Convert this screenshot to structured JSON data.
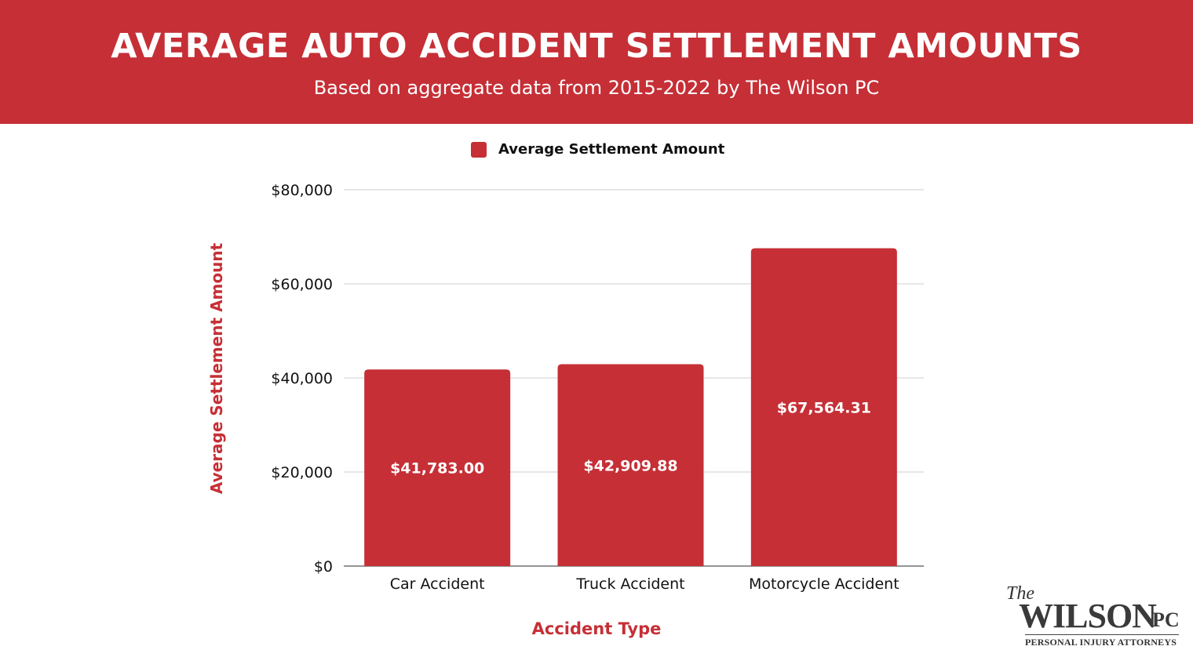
{
  "header": {
    "title": "AVERAGE AUTO ACCIDENT SETTLEMENT AMOUNTS",
    "subtitle": "Based on aggregate data from 2015-2022 by The Wilson PC"
  },
  "logo": {
    "the": "The",
    "name": "WILSON",
    "suffix": "PC",
    "tagline": "PERSONAL INJURY ATTORNEYS"
  },
  "colors": {
    "brand": "#c62f36",
    "bar": "#c62f36",
    "grid": "#cfcfcf",
    "axis_title": "#c62f36"
  },
  "chart_data": {
    "type": "bar",
    "categories": [
      "Car Accident",
      "Truck Accident",
      "Motorcycle Accident"
    ],
    "series": [
      {
        "name": "Average Settlement Amount",
        "values": [
          41783.0,
          42909.88,
          67564.31
        ],
        "labels": [
          "$41,783.00",
          "$42,909.88",
          "$67,564.31"
        ]
      }
    ],
    "xlabel": "Accident Type",
    "ylabel": "Average Settlement Amount",
    "ylim": [
      0,
      80000
    ],
    "yticks": [
      0,
      20000,
      40000,
      60000,
      80000
    ],
    "ytick_labels": [
      "$0",
      "$20,000",
      "$40,000",
      "$60,000",
      "$80,000"
    ],
    "grid": true,
    "legend": "top-center"
  }
}
